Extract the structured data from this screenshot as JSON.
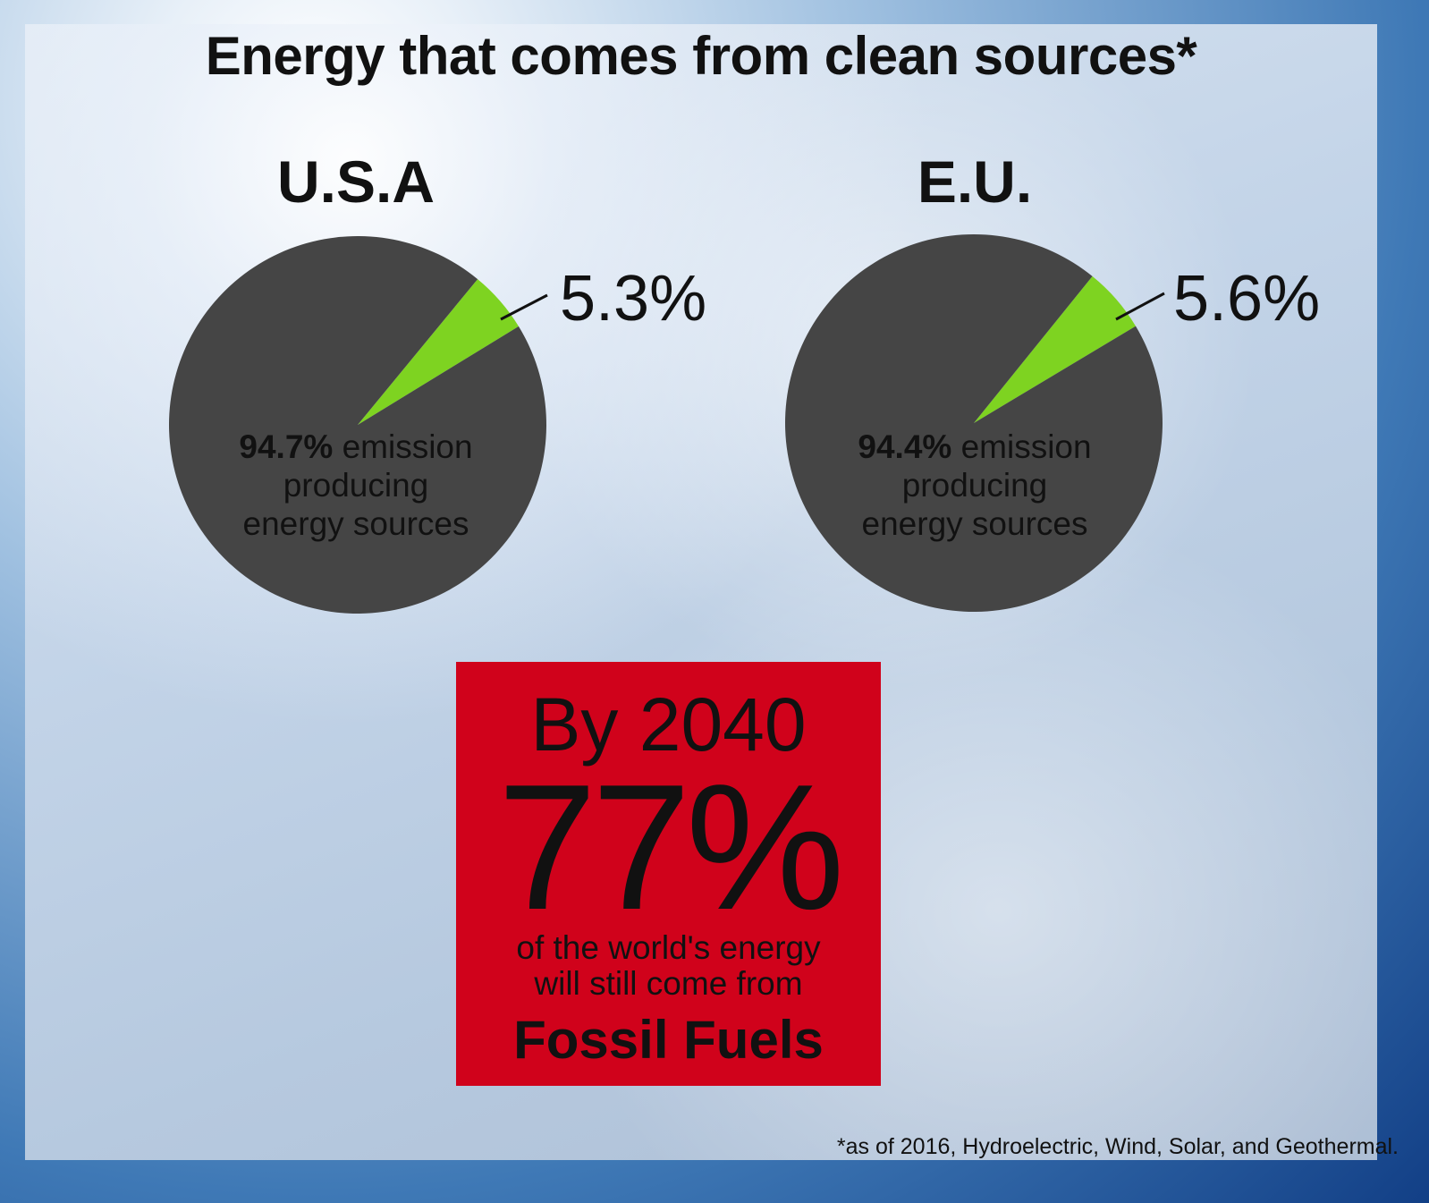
{
  "title": "Energy that comes from clean sources*",
  "chart_data": [
    {
      "type": "pie",
      "title": "U.S.A",
      "slices": [
        {
          "label": "clean sources",
          "value": 5.3,
          "display": "5.3%",
          "color": "#7ed321"
        },
        {
          "label": "emission producing energy sources",
          "value": 94.7,
          "display": "94.7%",
          "color": "#454545"
        }
      ],
      "inner_label": {
        "bold": "94.7%",
        "rest1": " emission",
        "rest2": "producing",
        "rest3": "energy sources"
      }
    },
    {
      "type": "pie",
      "title": "E.U.",
      "slices": [
        {
          "label": "clean sources",
          "value": 5.6,
          "display": "5.6%",
          "color": "#7ed321"
        },
        {
          "label": "emission producing energy sources",
          "value": 94.4,
          "display": "94.4%",
          "color": "#454545"
        }
      ],
      "inner_label": {
        "bold": "94.4%",
        "rest1": " emission",
        "rest2": "producing",
        "rest3": "energy sources"
      }
    }
  ],
  "callout": {
    "year": "By 2040",
    "percent": "77%",
    "line1": "of the world's energy",
    "line2": "will still come from",
    "emphasis": "Fossil Fuels",
    "color": "#d0021b"
  },
  "footnote": "*as of 2016, Hydroelectric, Wind, Solar, and Geothermal."
}
